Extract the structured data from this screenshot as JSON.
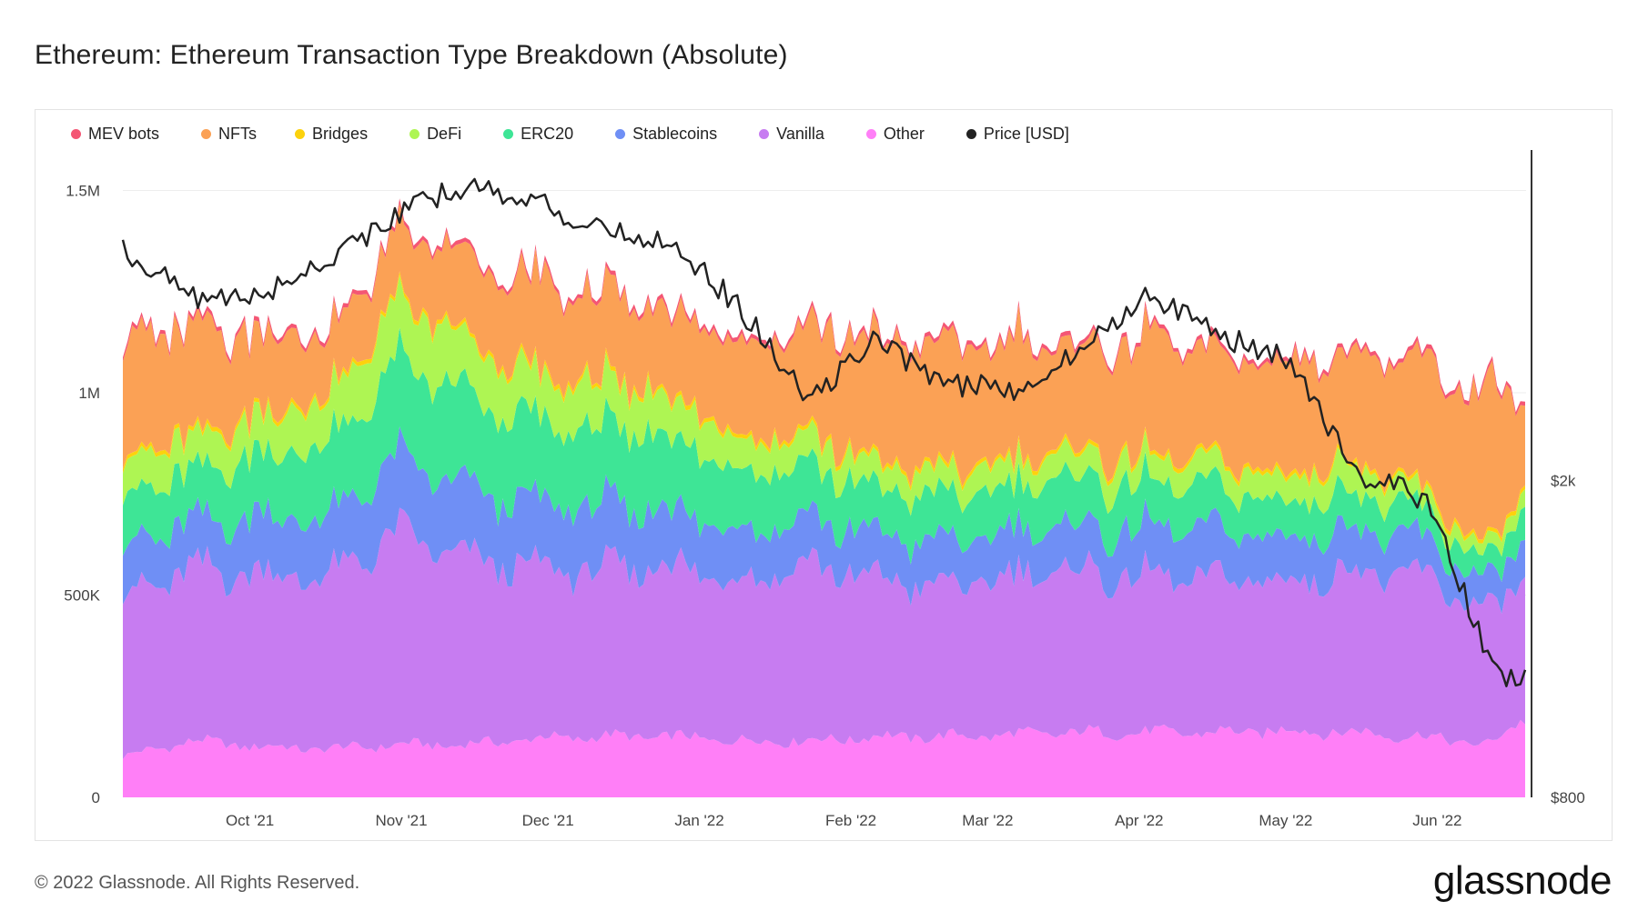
{
  "title": "Ethereum: Ethereum Transaction Type Breakdown (Absolute)",
  "footer": "© 2022 Glassnode. All Rights Reserved.",
  "brand": "glassnode",
  "watermark": "glassnode",
  "chart_data": {
    "type": "area",
    "stacked": true,
    "title": "Ethereum: Ethereum Transaction Type Breakdown (Absolute)",
    "x": [
      "2021-09-05",
      "2021-09-19",
      "2021-10-03",
      "2021-10-17",
      "2021-10-31",
      "2021-11-14",
      "2021-11-28",
      "2021-12-12",
      "2021-12-26",
      "2022-01-09",
      "2022-01-23",
      "2022-02-06",
      "2022-02-20",
      "2022-03-06",
      "2022-03-20",
      "2022-04-03",
      "2022-04-17",
      "2022-05-01",
      "2022-05-15",
      "2022-05-29",
      "2022-06-12",
      "2022-06-19"
    ],
    "x_ticks": [
      "Oct '21",
      "Nov '21",
      "Dec '21",
      "Jan '22",
      "Feb '22",
      "Mar '22",
      "Apr '22",
      "May '22",
      "Jun '22"
    ],
    "y_ticks_left": [
      "0",
      "500K",
      "1M",
      "1.5M"
    ],
    "y_ticks_right": [
      "$800",
      "$2k"
    ],
    "ylim": [
      0,
      1600000
    ],
    "y2_scale": "log",
    "y2lim": [
      800,
      5200
    ],
    "series": [
      {
        "name": "Other",
        "color": "#ff7ff7",
        "values": [
          100000,
          140000,
          125000,
          120000,
          130000,
          130000,
          145000,
          150000,
          150000,
          140000,
          140000,
          150000,
          150000,
          155000,
          160000,
          160000,
          160000,
          165000,
          160000,
          150000,
          130000,
          200000
        ]
      },
      {
        "name": "Vanilla",
        "color": "#c77cf1",
        "values": [
          400000,
          420000,
          430000,
          420000,
          520000,
          460000,
          420000,
          410000,
          420000,
          400000,
          440000,
          390000,
          370000,
          390000,
          400000,
          380000,
          380000,
          370000,
          400000,
          400000,
          320000,
          360000
        ]
      },
      {
        "name": "Stablecoins",
        "color": "#6f8ff5",
        "values": [
          120000,
          120000,
          140000,
          150000,
          180000,
          170000,
          160000,
          160000,
          140000,
          120000,
          110000,
          110000,
          110000,
          110000,
          110000,
          120000,
          120000,
          110000,
          110000,
          90000,
          70000,
          100000
        ]
      },
      {
        "name": "ERC20",
        "color": "#3ee596",
        "values": [
          130000,
          120000,
          150000,
          180000,
          230000,
          230000,
          200000,
          190000,
          180000,
          150000,
          130000,
          110000,
          110000,
          110000,
          120000,
          110000,
          100000,
          90000,
          90000,
          70000,
          50000,
          80000
        ]
      },
      {
        "name": "DeFi",
        "color": "#aef553",
        "values": [
          90000,
          80000,
          90000,
          110000,
          150000,
          130000,
          110000,
          110000,
          100000,
          80000,
          70000,
          60000,
          60000,
          60000,
          60000,
          60000,
          60000,
          60000,
          70000,
          40000,
          30000,
          40000
        ]
      },
      {
        "name": "Bridges",
        "color": "#fcd20d",
        "values": [
          10000,
          10000,
          10000,
          10000,
          10000,
          10000,
          10000,
          10000,
          10000,
          10000,
          10000,
          10000,
          10000,
          10000,
          10000,
          10000,
          10000,
          10000,
          10000,
          10000,
          10000,
          10000
        ]
      },
      {
        "name": "NFTs",
        "color": "#fba155",
        "values": [
          290000,
          260000,
          200000,
          150000,
          160000,
          200000,
          220000,
          210000,
          200000,
          230000,
          250000,
          300000,
          300000,
          290000,
          250000,
          290000,
          260000,
          270000,
          260000,
          310000,
          380000,
          200000
        ]
      },
      {
        "name": "MEV bots",
        "color": "#f45674",
        "values": [
          10000,
          10000,
          10000,
          10000,
          10000,
          10000,
          10000,
          10000,
          10000,
          10000,
          10000,
          10000,
          10000,
          10000,
          10000,
          10000,
          10000,
          10000,
          10000,
          10000,
          10000,
          10000
        ]
      }
    ],
    "price": {
      "name": "Price [USD]",
      "color": "#222222",
      "values": [
        3900,
        3400,
        3400,
        3800,
        4300,
        4700,
        4500,
        4100,
        4000,
        3300,
        2500,
        3000,
        2650,
        2600,
        2900,
        3450,
        3050,
        2850,
        2050,
        1900,
        1150,
        1120
      ]
    },
    "legend": [
      {
        "name": "MEV bots",
        "color": "#f45674"
      },
      {
        "name": "NFTs",
        "color": "#fba155"
      },
      {
        "name": "Bridges",
        "color": "#fcd20d"
      },
      {
        "name": "DeFi",
        "color": "#aef553"
      },
      {
        "name": "ERC20",
        "color": "#3ee596"
      },
      {
        "name": "Stablecoins",
        "color": "#6f8ff5"
      },
      {
        "name": "Vanilla",
        "color": "#c77cf1"
      },
      {
        "name": "Other",
        "color": "#ff7ff7"
      },
      {
        "name": "Price [USD]",
        "color": "#222222"
      }
    ]
  }
}
